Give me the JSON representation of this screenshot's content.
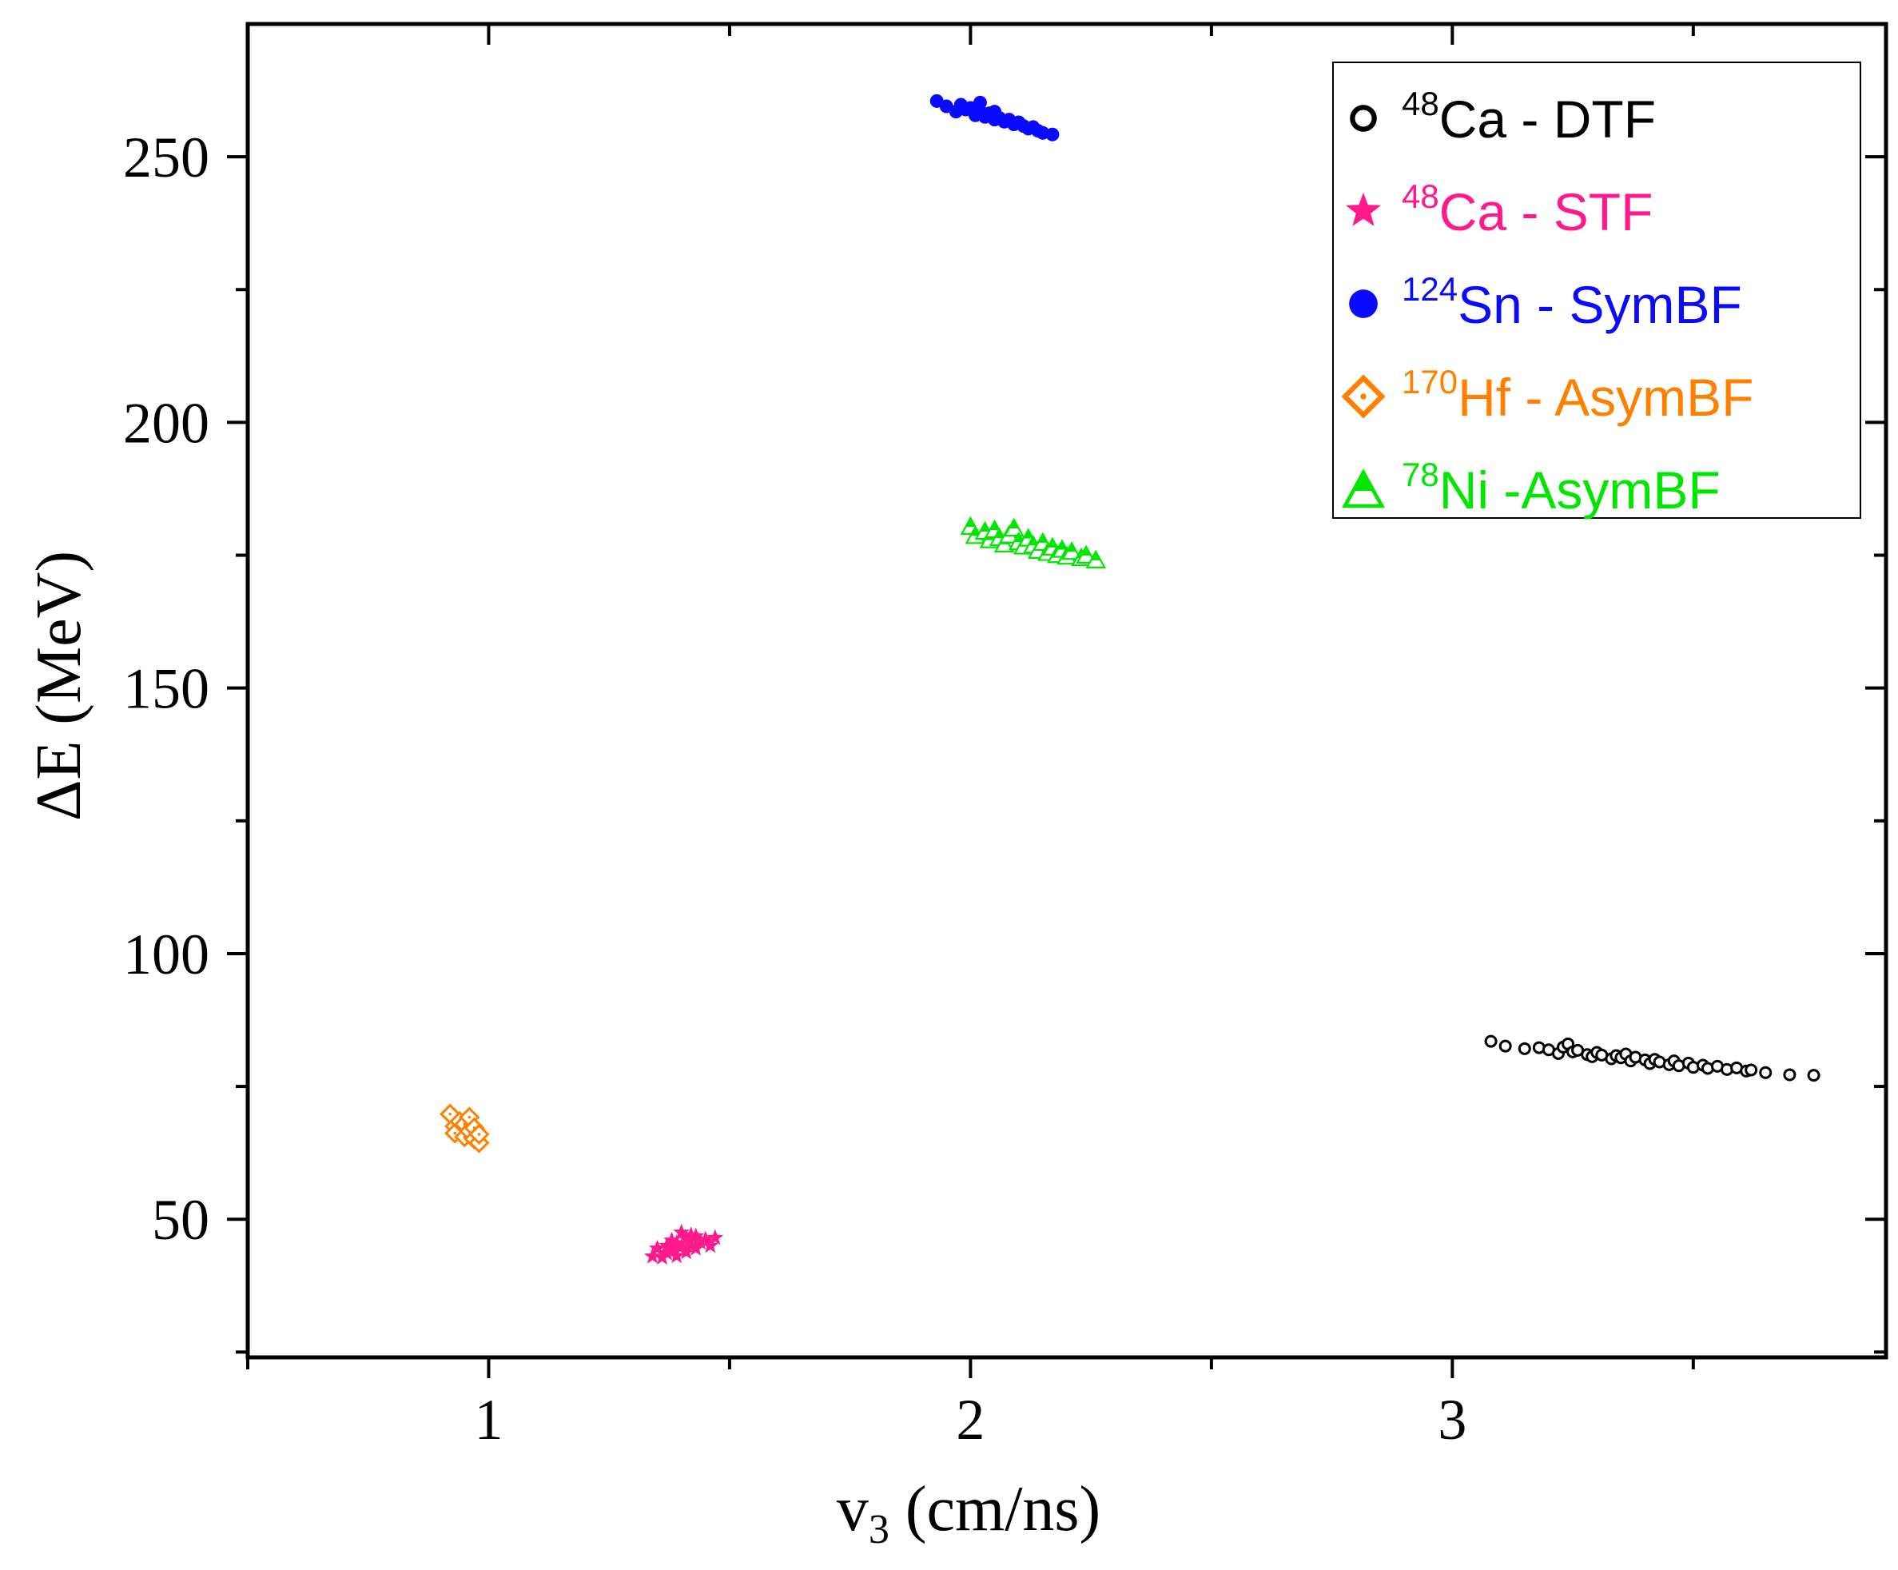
{
  "chart_data": {
    "type": "scatter",
    "xlabel": {
      "main": "v",
      "sub": "3",
      "rest": " (cm/ns)"
    },
    "ylabel": "ΔE (MeV)",
    "xlim": [
      0.5,
      3.9
    ],
    "ylim": [
      24,
      275
    ],
    "x_major_ticks": [
      1,
      2,
      3
    ],
    "x_minor_ticks": [
      0.5,
      1.5,
      2.5,
      3.5
    ],
    "x_tick_labels": [
      "1",
      "2",
      "3"
    ],
    "y_major_ticks": [
      50,
      100,
      150,
      200,
      250
    ],
    "y_minor_ticks": [
      25,
      75,
      125,
      175,
      225
    ],
    "y_tick_labels": [
      "50",
      "100",
      "150",
      "200",
      "250"
    ],
    "grid": false,
    "legend_position": "top-right",
    "series": [
      {
        "name": "48Ca - DTF",
        "label_sup": "48",
        "label_main": "Ca - DTF",
        "color": "#000000",
        "marker": "open-circle",
        "points": [
          [
            3.08,
            83.5
          ],
          [
            3.11,
            82.6
          ],
          [
            3.15,
            82.1
          ],
          [
            3.18,
            82.3
          ],
          [
            3.2,
            81.9
          ],
          [
            3.22,
            81.2
          ],
          [
            3.23,
            82.4
          ],
          [
            3.24,
            83.0
          ],
          [
            3.25,
            81.5
          ],
          [
            3.26,
            81.8
          ],
          [
            3.28,
            81.0
          ],
          [
            3.29,
            80.6
          ],
          [
            3.3,
            81.4
          ],
          [
            3.31,
            80.9
          ],
          [
            3.33,
            80.2
          ],
          [
            3.34,
            80.8
          ],
          [
            3.35,
            80.4
          ],
          [
            3.36,
            81.1
          ],
          [
            3.37,
            79.8
          ],
          [
            3.38,
            80.5
          ],
          [
            3.4,
            80.0
          ],
          [
            3.41,
            79.3
          ],
          [
            3.42,
            80.1
          ],
          [
            3.43,
            79.6
          ],
          [
            3.45,
            79.1
          ],
          [
            3.46,
            79.8
          ],
          [
            3.47,
            78.9
          ],
          [
            3.49,
            79.4
          ],
          [
            3.5,
            78.6
          ],
          [
            3.52,
            79.0
          ],
          [
            3.53,
            78.4
          ],
          [
            3.55,
            78.8
          ],
          [
            3.57,
            78.2
          ],
          [
            3.59,
            78.5
          ],
          [
            3.61,
            77.9
          ],
          [
            3.62,
            78.1
          ],
          [
            3.65,
            77.6
          ],
          [
            3.7,
            77.2
          ],
          [
            3.75,
            77.1
          ]
        ]
      },
      {
        "name": "48Ca - STF",
        "label_sup": "48",
        "label_main": "Ca - STF",
        "color": "#ff1a8c",
        "marker": "star",
        "points": [
          [
            1.34,
            43.0
          ],
          [
            1.35,
            44.5
          ],
          [
            1.36,
            42.8
          ],
          [
            1.37,
            45.0
          ],
          [
            1.37,
            43.6
          ],
          [
            1.38,
            46.0
          ],
          [
            1.38,
            44.2
          ],
          [
            1.39,
            43.1
          ],
          [
            1.39,
            45.5
          ],
          [
            1.4,
            47.5
          ],
          [
            1.4,
            44.8
          ],
          [
            1.41,
            46.3
          ],
          [
            1.41,
            43.8
          ],
          [
            1.42,
            45.2
          ],
          [
            1.42,
            47.0
          ],
          [
            1.43,
            44.5
          ],
          [
            1.43,
            46.8
          ],
          [
            1.44,
            45.6
          ],
          [
            1.45,
            46.2
          ],
          [
            1.46,
            45.0
          ],
          [
            1.47,
            46.5
          ]
        ]
      },
      {
        "name": "124Sn - SymBF",
        "label_sup": "124",
        "label_main": "Sn - SymBF",
        "color": "#0a0aff",
        "marker": "filled-circle",
        "points": [
          [
            1.93,
            260.5
          ],
          [
            1.95,
            259.5
          ],
          [
            1.97,
            258.5
          ],
          [
            1.98,
            259.8
          ],
          [
            1.99,
            258.9
          ],
          [
            2.0,
            259.2
          ],
          [
            2.01,
            257.8
          ],
          [
            2.02,
            258.6
          ],
          [
            2.02,
            260.2
          ],
          [
            2.03,
            257.5
          ],
          [
            2.04,
            258.2
          ],
          [
            2.05,
            257.0
          ],
          [
            2.05,
            258.5
          ],
          [
            2.06,
            257.3
          ],
          [
            2.07,
            256.6
          ],
          [
            2.08,
            257.0
          ],
          [
            2.09,
            256.1
          ],
          [
            2.1,
            256.5
          ],
          [
            2.11,
            255.8
          ],
          [
            2.12,
            255.3
          ],
          [
            2.13,
            255.6
          ],
          [
            2.14,
            254.9
          ],
          [
            2.15,
            254.5
          ],
          [
            2.17,
            254.2
          ]
        ]
      },
      {
        "name": "170Hf - AsymBF",
        "label_sup": "170",
        "label_main": "Hf - AsymBF",
        "color": "#ff8000",
        "marker": "open-diamond-dot",
        "points": [
          [
            0.92,
            69.8
          ],
          [
            0.93,
            67.5
          ],
          [
            0.93,
            66.2
          ],
          [
            0.94,
            68.4
          ],
          [
            0.95,
            65.5
          ],
          [
            0.95,
            67.9
          ],
          [
            0.96,
            66.6
          ],
          [
            0.96,
            69.2
          ],
          [
            0.97,
            65.1
          ],
          [
            0.97,
            67.2
          ],
          [
            0.98,
            64.4
          ],
          [
            0.98,
            66.0
          ]
        ]
      },
      {
        "name": "78Ni -AsymBF",
        "label_sup": "78",
        "label_main": "Ni -AsymBF",
        "color": "#00e600",
        "marker": "triangle-half",
        "points": [
          [
            2.0,
            180.5
          ],
          [
            2.01,
            178.8
          ],
          [
            2.03,
            179.6
          ],
          [
            2.04,
            178.0
          ],
          [
            2.05,
            179.9
          ],
          [
            2.06,
            178.4
          ],
          [
            2.07,
            177.2
          ],
          [
            2.08,
            178.9
          ],
          [
            2.09,
            180.2
          ],
          [
            2.1,
            177.6
          ],
          [
            2.11,
            176.8
          ],
          [
            2.12,
            178.3
          ],
          [
            2.13,
            177.0
          ],
          [
            2.14,
            176.0
          ],
          [
            2.15,
            177.5
          ],
          [
            2.16,
            175.6
          ],
          [
            2.17,
            176.6
          ],
          [
            2.18,
            175.2
          ],
          [
            2.19,
            176.2
          ],
          [
            2.2,
            174.9
          ],
          [
            2.21,
            175.8
          ],
          [
            2.23,
            174.6
          ],
          [
            2.24,
            175.1
          ],
          [
            2.26,
            174.2
          ]
        ]
      }
    ]
  }
}
